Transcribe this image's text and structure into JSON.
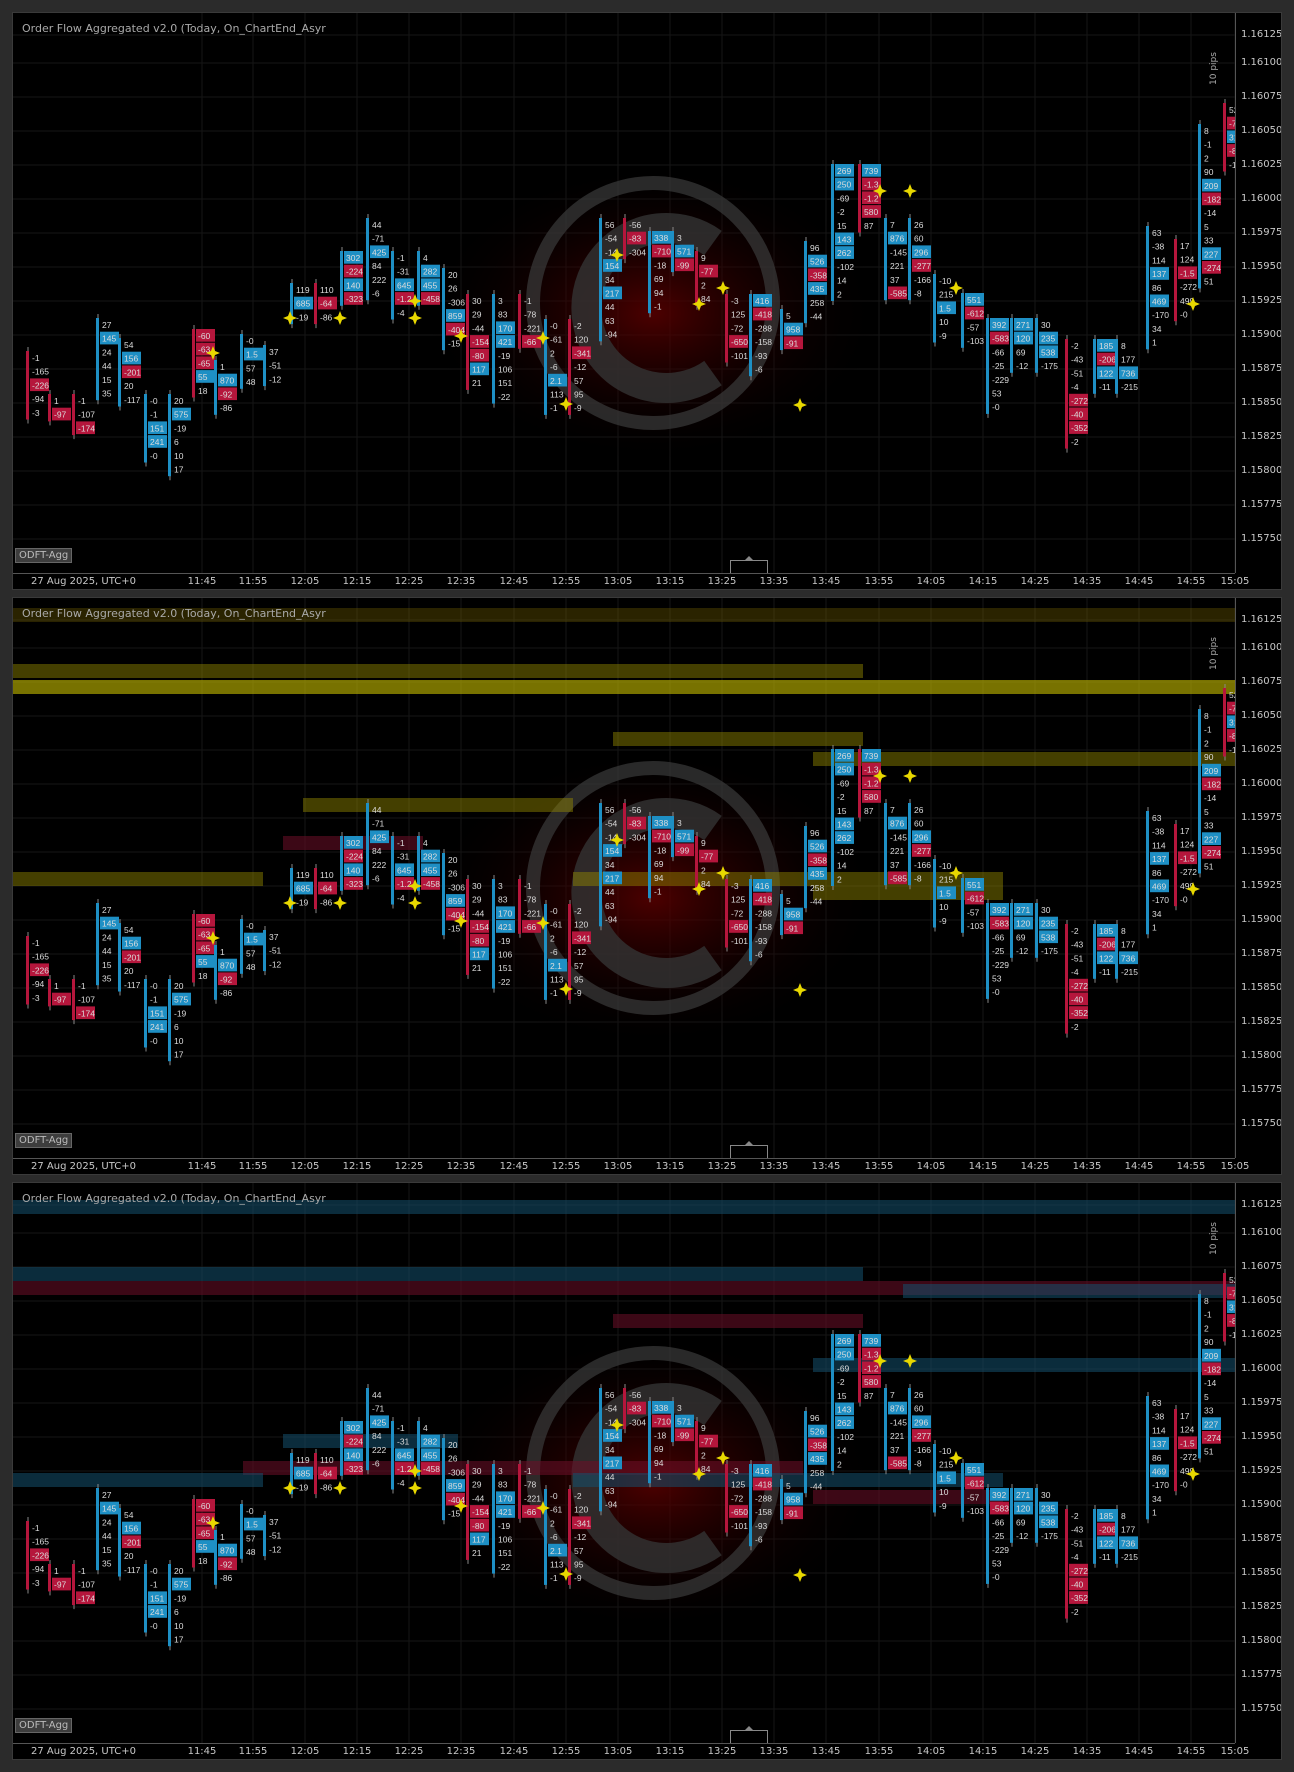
{
  "panels": [
    {
      "title": "Order Flow Aggregated v2.0 (Today, On_ChartEnd_Asyr",
      "badge": "ODFT-Agg",
      "range_label": "10 pips",
      "date_label": "27 Aug 2025, UTC+0",
      "zones": "none"
    },
    {
      "title": "Order Flow Aggregated v2.0 (Today, On_ChartEnd_Asyr",
      "badge": "ODFT-Agg",
      "range_label": "10 pips",
      "date_label": "27 Aug 2025, UTC+0",
      "zones": "yellow"
    },
    {
      "title": "Order Flow Aggregated v2.0 (Today, On_ChartEnd_Asyr",
      "badge": "ODFT-Agg",
      "range_label": "10 pips",
      "date_label": "27 Aug 2025, UTC+0",
      "zones": "blue-red"
    }
  ],
  "y_labels": [
    "1.16125",
    "1.16100",
    "1.16075",
    "1.16050",
    "1.16025",
    "1.16000",
    "1.15975",
    "1.15950",
    "1.15925",
    "1.15900",
    "1.15875",
    "1.15850",
    "1.15825",
    "1.15800",
    "1.15775",
    "1.15750"
  ],
  "x_labels": [
    "11:45",
    "11:55",
    "12:05",
    "12:15",
    "12:25",
    "12:35",
    "12:45",
    "12:55",
    "13:05",
    "13:15",
    "13:25",
    "13:35",
    "13:45",
    "13:55",
    "14:05",
    "14:15",
    "14:25",
    "14:35",
    "14:45",
    "14:55",
    "15:05"
  ],
  "colors": {
    "positive": "#1e8fc4",
    "negative": "#b5163c",
    "highlight": "#e8d800",
    "text": "#dcdcdc"
  },
  "candles": [
    {
      "cells": [
        [
          "-1",
          "n"
        ],
        [
          "-165",
          "n"
        ],
        [
          "-226",
          "r"
        ],
        [
          "-94",
          "n"
        ],
        [
          "-3",
          "n"
        ]
      ]
    },
    {
      "cells": [
        [
          "1",
          "n"
        ],
        [
          "-97",
          "r"
        ]
      ]
    },
    {
      "cells": [
        [
          "-1",
          "n"
        ],
        [
          "-107",
          "n"
        ],
        [
          "-174",
          "r"
        ]
      ]
    },
    {
      "cells": [
        [
          "27",
          "n"
        ],
        [
          "145",
          "b"
        ],
        [
          "24",
          "n"
        ],
        [
          "44",
          "n"
        ],
        [
          "15",
          "n"
        ],
        [
          "35",
          "n"
        ]
      ]
    },
    {
      "cells": [
        [
          "54",
          "n"
        ],
        [
          "156",
          "b"
        ],
        [
          "-201",
          "r"
        ],
        [
          "20",
          "n"
        ],
        [
          "-117",
          "n"
        ]
      ]
    },
    {
      "cells": [
        [
          "-0",
          "n"
        ],
        [
          "-1",
          "n"
        ],
        [
          "151",
          "b"
        ],
        [
          "241",
          "b"
        ],
        [
          "-0",
          "n"
        ]
      ]
    },
    {
      "cells": [
        [
          "20",
          "n"
        ],
        [
          "575",
          "b"
        ],
        [
          "-19",
          "n"
        ],
        [
          "6",
          "n"
        ],
        [
          "10",
          "n"
        ],
        [
          "17",
          "n"
        ]
      ]
    },
    {
      "cells": [
        [
          "-60",
          "r"
        ],
        [
          "-63",
          "r"
        ],
        [
          "-65",
          "r"
        ],
        [
          "55",
          "b"
        ],
        [
          "18",
          "n"
        ]
      ]
    },
    {
      "cells": [
        [
          "1",
          "n"
        ],
        [
          "870",
          "b"
        ],
        [
          "-92",
          "r"
        ],
        [
          "-86",
          "n"
        ]
      ]
    },
    {
      "cells": [
        [
          "-0",
          "n"
        ],
        [
          "1.5",
          "b"
        ],
        [
          "57",
          "n"
        ],
        [
          "48",
          "n"
        ]
      ]
    },
    {
      "cells": [
        [
          "37",
          "n"
        ],
        [
          "-51",
          "n"
        ],
        [
          "-12",
          "n"
        ]
      ]
    },
    {
      "cells": [
        [
          "119",
          "n"
        ],
        [
          "685",
          "b"
        ],
        [
          "-19",
          "n"
        ]
      ]
    },
    {
      "cells": [
        [
          "110",
          "n"
        ],
        [
          "-64",
          "r"
        ],
        [
          "-86",
          "n"
        ]
      ]
    },
    {
      "cells": [
        [
          "302",
          "b"
        ],
        [
          "-224",
          "r"
        ],
        [
          "140",
          "b"
        ],
        [
          "-323",
          "r"
        ]
      ]
    },
    {
      "cells": [
        [
          "44",
          "n"
        ],
        [
          "-71",
          "n"
        ],
        [
          "425",
          "b"
        ],
        [
          "84",
          "n"
        ],
        [
          "222",
          "n"
        ],
        [
          "-6",
          "n"
        ]
      ]
    },
    {
      "cells": [
        [
          "-1",
          "n"
        ],
        [
          "-31",
          "n"
        ],
        [
          "645",
          "b"
        ],
        [
          "-1.2",
          "r"
        ],
        [
          "-4",
          "n"
        ]
      ]
    },
    {
      "cells": [
        [
          "4",
          "n"
        ],
        [
          "282",
          "b"
        ],
        [
          "455",
          "b"
        ],
        [
          "-458",
          "r"
        ]
      ]
    },
    {
      "cells": [
        [
          "20",
          "n"
        ],
        [
          "26",
          "n"
        ],
        [
          "-306",
          "n"
        ],
        [
          "859",
          "b"
        ],
        [
          "-404",
          "r"
        ],
        [
          "-15",
          "n"
        ]
      ]
    },
    {
      "cells": [
        [
          "30",
          "n"
        ],
        [
          "29",
          "n"
        ],
        [
          "-44",
          "n"
        ],
        [
          "-154",
          "r"
        ],
        [
          "-80",
          "r"
        ],
        [
          "117",
          "b"
        ],
        [
          "21",
          "n"
        ]
      ]
    },
    {
      "cells": [
        [
          "3",
          "n"
        ],
        [
          "83",
          "n"
        ],
        [
          "170",
          "b"
        ],
        [
          "421",
          "b"
        ],
        [
          "-19",
          "n"
        ],
        [
          "106",
          "n"
        ],
        [
          "151",
          "n"
        ],
        [
          "-22",
          "n"
        ]
      ]
    },
    {
      "cells": [
        [
          "-1",
          "n"
        ],
        [
          "-78",
          "n"
        ],
        [
          "-221",
          "n"
        ],
        [
          "-66",
          "r"
        ]
      ]
    },
    {
      "cells": [
        [
          "-0",
          "n"
        ],
        [
          "-61",
          "n"
        ],
        [
          "2",
          "n"
        ],
        [
          "-6",
          "n"
        ],
        [
          "2.1",
          "b"
        ],
        [
          "113",
          "n"
        ],
        [
          "-1",
          "n"
        ]
      ]
    },
    {
      "cells": [
        [
          "-2",
          "n"
        ],
        [
          "120",
          "n"
        ],
        [
          "-341",
          "r"
        ],
        [
          "-12",
          "n"
        ],
        [
          "57",
          "n"
        ],
        [
          "95",
          "n"
        ],
        [
          "-9",
          "n"
        ]
      ]
    },
    {
      "cells": [
        [
          "56",
          "n"
        ],
        [
          "-54",
          "n"
        ],
        [
          "-14",
          "n"
        ],
        [
          "154",
          "b"
        ],
        [
          "34",
          "n"
        ],
        [
          "217",
          "b"
        ],
        [
          "44",
          "n"
        ],
        [
          "63",
          "n"
        ],
        [
          "-94",
          "n"
        ]
      ]
    },
    {
      "cells": [
        [
          "-56",
          "n"
        ],
        [
          "-83",
          "r"
        ],
        [
          "-304",
          "n"
        ]
      ]
    },
    {
      "cells": [
        [
          "338",
          "b"
        ],
        [
          "-710",
          "r"
        ],
        [
          "-18",
          "n"
        ],
        [
          "69",
          "n"
        ],
        [
          "94",
          "n"
        ],
        [
          "-1",
          "n"
        ]
      ]
    },
    {
      "cells": [
        [
          "3",
          "n"
        ],
        [
          "571",
          "b"
        ],
        [
          "-99",
          "r"
        ]
      ]
    },
    {
      "cells": [
        [
          "9",
          "n"
        ],
        [
          "-77",
          "r"
        ],
        [
          "2",
          "n"
        ],
        [
          "84",
          "n"
        ]
      ]
    },
    {
      "cells": [
        [
          "-3",
          "n"
        ],
        [
          "125",
          "n"
        ],
        [
          "-72",
          "n"
        ],
        [
          "-650",
          "r"
        ],
        [
          "-101",
          "n"
        ]
      ]
    },
    {
      "cells": [
        [
          "416",
          "b"
        ],
        [
          "-418",
          "r"
        ],
        [
          "-288",
          "n"
        ],
        [
          "-158",
          "n"
        ],
        [
          "-93",
          "n"
        ],
        [
          "-6",
          "n"
        ]
      ]
    },
    {
      "cells": [
        [
          "5",
          "n"
        ],
        [
          "958",
          "b"
        ],
        [
          "-91",
          "r"
        ]
      ]
    },
    {
      "cells": [
        [
          "96",
          "n"
        ],
        [
          "526",
          "b"
        ],
        [
          "-358",
          "r"
        ],
        [
          "435",
          "b"
        ],
        [
          "258",
          "n"
        ],
        [
          "-44",
          "n"
        ]
      ]
    },
    {
      "cells": [
        [
          "269",
          "b"
        ],
        [
          "250",
          "b"
        ],
        [
          "-69",
          "n"
        ],
        [
          "-2",
          "n"
        ],
        [
          "15",
          "n"
        ],
        [
          "143",
          "b"
        ],
        [
          "262",
          "b"
        ],
        [
          "-102",
          "n"
        ],
        [
          "14",
          "n"
        ],
        [
          "2",
          "n"
        ]
      ]
    },
    {
      "cells": [
        [
          "739",
          "b"
        ],
        [
          "-1.3",
          "r"
        ],
        [
          "-1.2",
          "r"
        ],
        [
          "580",
          "r"
        ],
        [
          "87",
          "n"
        ]
      ]
    },
    {
      "cells": [
        [
          "7",
          "n"
        ],
        [
          "876",
          "b"
        ],
        [
          "-145",
          "n"
        ],
        [
          "221",
          "n"
        ],
        [
          "37",
          "n"
        ],
        [
          "-585",
          "r"
        ]
      ]
    },
    {
      "cells": [
        [
          "26",
          "n"
        ],
        [
          "60",
          "n"
        ],
        [
          "296",
          "b"
        ],
        [
          "-277",
          "r"
        ],
        [
          "-166",
          "n"
        ],
        [
          "-8",
          "n"
        ]
      ]
    },
    {
      "cells": [
        [
          "-10",
          "n"
        ],
        [
          "215",
          "n"
        ],
        [
          "1.5",
          "b"
        ],
        [
          "10",
          "n"
        ],
        [
          "-9",
          "n"
        ]
      ]
    },
    {
      "cells": [
        [
          "551",
          "b"
        ],
        [
          "-612",
          "r"
        ],
        [
          "-57",
          "n"
        ],
        [
          "-103",
          "n"
        ]
      ]
    },
    {
      "cells": [
        [
          "392",
          "b"
        ],
        [
          "-583",
          "r"
        ],
        [
          "-66",
          "n"
        ],
        [
          "-25",
          "n"
        ],
        [
          "-229",
          "n"
        ],
        [
          "53",
          "n"
        ],
        [
          "-0",
          "n"
        ]
      ]
    },
    {
      "cells": [
        [
          "271",
          "b"
        ],
        [
          "120",
          "b"
        ],
        [
          "69",
          "n"
        ],
        [
          "-12",
          "n"
        ]
      ]
    },
    {
      "cells": [
        [
          "30",
          "n"
        ],
        [
          "235",
          "b"
        ],
        [
          "538",
          "b"
        ],
        [
          "-175",
          "n"
        ]
      ]
    },
    {
      "cells": [
        [
          "-2",
          "n"
        ],
        [
          "-43",
          "n"
        ],
        [
          "-51",
          "n"
        ],
        [
          "-4",
          "n"
        ],
        [
          "-272",
          "r"
        ],
        [
          "-40",
          "r"
        ],
        [
          "-352",
          "r"
        ],
        [
          "-2",
          "n"
        ]
      ]
    },
    {
      "cells": [
        [
          "185",
          "b"
        ],
        [
          "-206",
          "r"
        ],
        [
          "122",
          "b"
        ],
        [
          "-11",
          "n"
        ]
      ]
    },
    {
      "cells": [
        [
          "8",
          "n"
        ],
        [
          "177",
          "n"
        ],
        [
          "736",
          "b"
        ],
        [
          "-215",
          "n"
        ]
      ]
    },
    {
      "cells": [
        [
          "63",
          "n"
        ],
        [
          "-38",
          "n"
        ],
        [
          "114",
          "n"
        ],
        [
          "137",
          "b"
        ],
        [
          "86",
          "n"
        ],
        [
          "469",
          "b"
        ],
        [
          "-170",
          "n"
        ],
        [
          "34",
          "n"
        ],
        [
          "1",
          "n"
        ]
      ]
    },
    {
      "cells": [
        [
          "17",
          "n"
        ],
        [
          "124",
          "n"
        ],
        [
          "-1.5",
          "r"
        ],
        [
          "-272",
          "n"
        ],
        [
          "499",
          "n"
        ],
        [
          "-0",
          "n"
        ]
      ]
    },
    {
      "cells": [
        [
          "8",
          "n"
        ],
        [
          "-1",
          "n"
        ],
        [
          "2",
          "n"
        ],
        [
          "90",
          "n"
        ],
        [
          "209",
          "b"
        ],
        [
          "-182",
          "r"
        ],
        [
          "-14",
          "n"
        ],
        [
          "5",
          "n"
        ],
        [
          "33",
          "n"
        ],
        [
          "227",
          "b"
        ],
        [
          "-274",
          "r"
        ],
        [
          "51",
          "n"
        ]
      ]
    },
    {
      "cells": [
        [
          "524",
          "n"
        ],
        [
          "-714",
          "r"
        ],
        [
          "319",
          "b"
        ],
        [
          "-892",
          "r"
        ],
        [
          "-1",
          "n"
        ]
      ]
    }
  ]
}
